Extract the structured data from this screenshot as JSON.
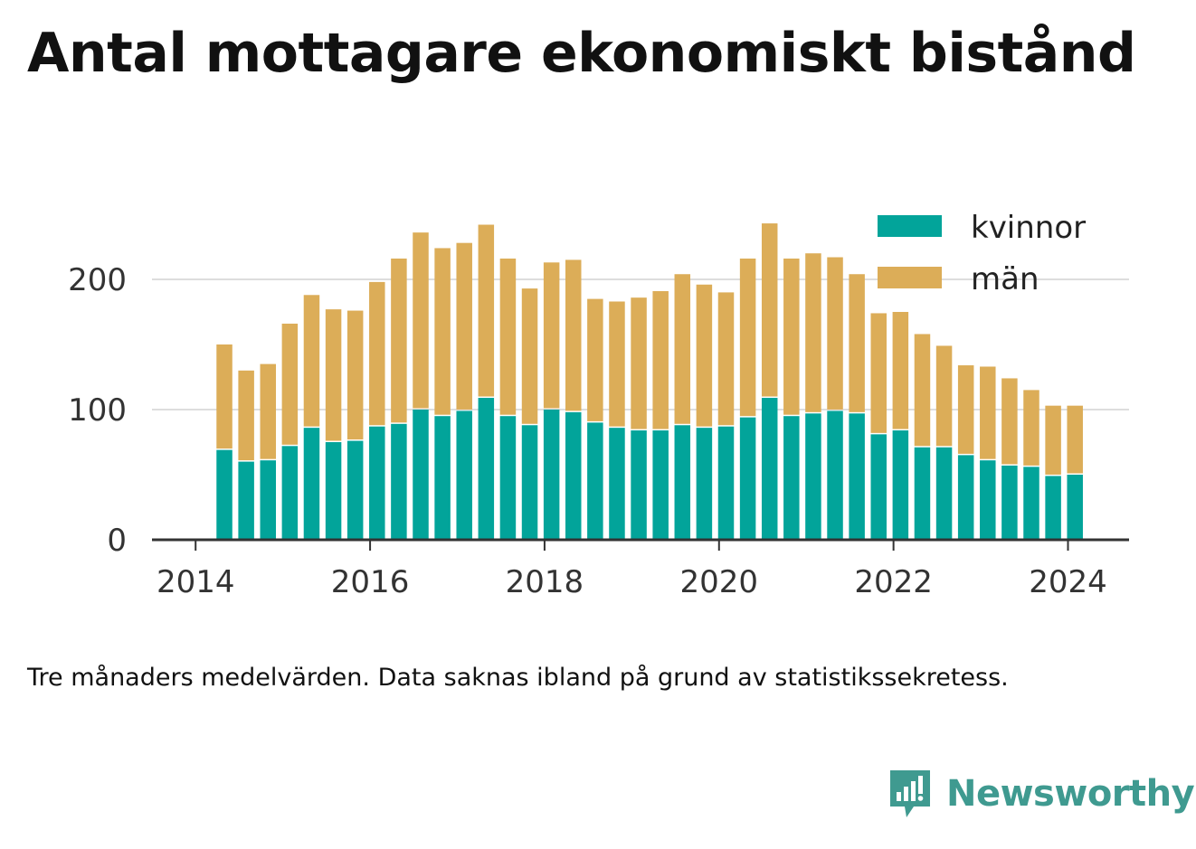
{
  "title": "Antal mottagare ekonomiskt bistånd",
  "caption": "Tre månaders medelvärden. Data saknas ibland på grund av statistikssekretess.",
  "brand": "Newsworthy",
  "colors": {
    "kvinnor": "#02a49a",
    "man": "#dcad58",
    "brand": "#3f9a90",
    "axis": "#333333",
    "grid": "#dddddd"
  },
  "chart_data": {
    "type": "bar",
    "stacked": true,
    "x": [
      2014.33,
      2014.58,
      2014.83,
      2015.08,
      2015.33,
      2015.58,
      2015.83,
      2016.08,
      2016.33,
      2016.58,
      2016.83,
      2017.08,
      2017.33,
      2017.58,
      2017.83,
      2018.08,
      2018.33,
      2018.58,
      2018.83,
      2019.08,
      2019.33,
      2019.58,
      2019.83,
      2020.08,
      2020.33,
      2020.58,
      2020.83,
      2021.08,
      2021.33,
      2021.58,
      2021.83,
      2022.08,
      2022.33,
      2022.58,
      2022.83,
      2023.08,
      2023.33,
      2023.58,
      2023.83,
      2024.08
    ],
    "series": [
      {
        "name": "kvinnor",
        "color": "#02a49a",
        "values": [
          69,
          60,
          61,
          72,
          86,
          75,
          76,
          87,
          89,
          100,
          95,
          99,
          109,
          95,
          88,
          100,
          98,
          90,
          86,
          84,
          84,
          88,
          86,
          87,
          94,
          109,
          95,
          97,
          99,
          97,
          81,
          84,
          71,
          71,
          65,
          61,
          57,
          56,
          49,
          50
        ]
      },
      {
        "name": "män",
        "color": "#dcad58",
        "values": [
          81,
          70,
          74,
          94,
          102,
          102,
          100,
          111,
          127,
          136,
          129,
          129,
          133,
          121,
          105,
          113,
          117,
          95,
          97,
          102,
          107,
          116,
          110,
          103,
          122,
          134,
          121,
          123,
          118,
          107,
          93,
          91,
          87,
          78,
          69,
          72,
          67,
          59,
          54,
          53
        ]
      }
    ],
    "xlim": [
      2013.5,
      2024.7
    ],
    "ylim": [
      0,
      250
    ],
    "xticks": [
      2014,
      2016,
      2018,
      2020,
      2022,
      2024
    ],
    "xtick_labels": [
      "2014",
      "2016",
      "2018",
      "2020",
      "2022",
      "2024"
    ],
    "yticks": [
      0,
      100,
      200
    ],
    "ytick_labels": [
      "0",
      "100",
      "200"
    ],
    "grid": true,
    "legend": {
      "position": "top-right",
      "labels": [
        "kvinnor",
        "män"
      ]
    }
  }
}
